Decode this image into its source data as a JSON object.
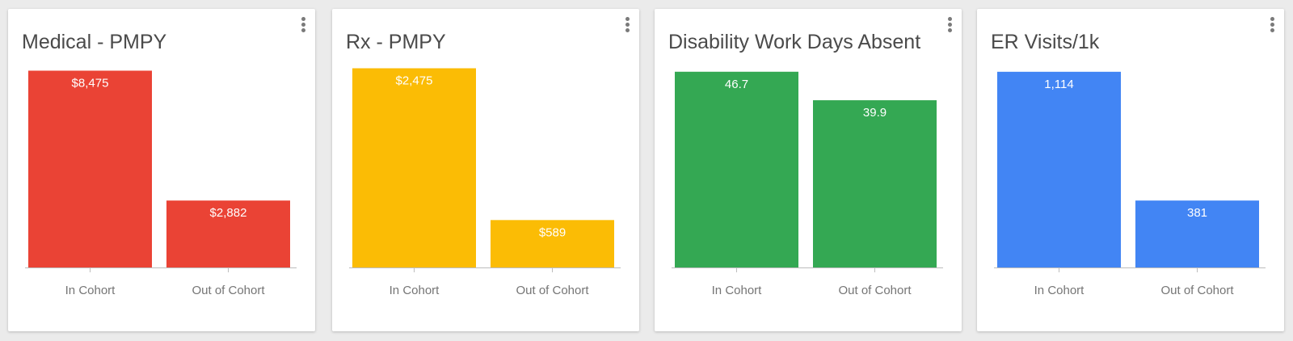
{
  "chart_data": [
    {
      "type": "bar",
      "title": "Medical - PMPY",
      "categories": [
        "In Cohort",
        "Out of Cohort"
      ],
      "values": [
        8475,
        2882
      ],
      "labels": [
        "$8,475",
        "$2,882"
      ],
      "color": "#ea4335",
      "ylim": [
        0,
        8700
      ],
      "grid": false,
      "legend": "none"
    },
    {
      "type": "bar",
      "title": "Rx - PMPY",
      "categories": [
        "In Cohort",
        "Out of Cohort"
      ],
      "values": [
        2475,
        589
      ],
      "labels": [
        "$2,475",
        "$589"
      ],
      "color": "#fbbc05",
      "ylim": [
        0,
        2510
      ],
      "grid": false,
      "legend": "none"
    },
    {
      "type": "bar",
      "title": "Disability Work Days Absent",
      "categories": [
        "In Cohort",
        "Out of Cohort"
      ],
      "values": [
        46.7,
        39.9
      ],
      "labels": [
        "46.7",
        "39.9"
      ],
      "color": "#34a853",
      "ylim": [
        0,
        48.2
      ],
      "grid": false,
      "legend": "none"
    },
    {
      "type": "bar",
      "title": "ER Visits/1k",
      "categories": [
        "In Cohort",
        "Out of Cohort"
      ],
      "values": [
        1114,
        381
      ],
      "labels": [
        "1,114",
        "381"
      ],
      "color": "#4285f4",
      "ylim": [
        0,
        1150
      ],
      "grid": false,
      "legend": "none"
    }
  ]
}
